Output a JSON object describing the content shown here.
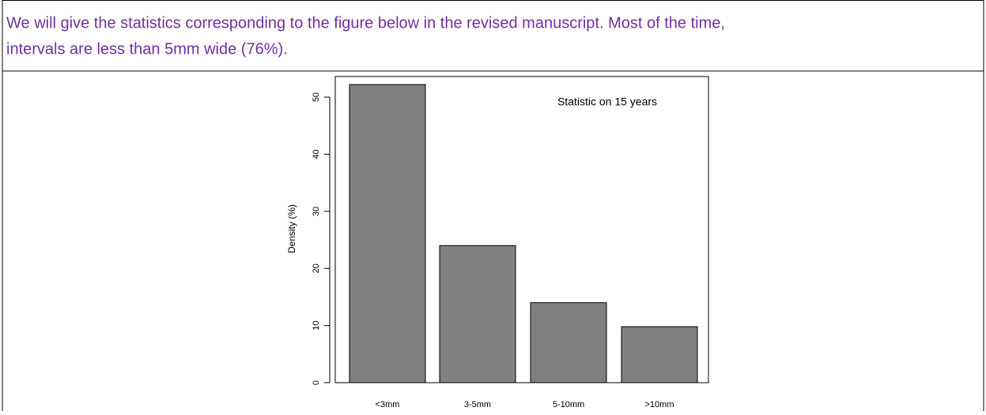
{
  "paragraph": [
    "We will give the statistics corresponding to the figure below in the revised manuscript. Most of the time,",
    "intervals are less than 5mm wide (76%)."
  ],
  "chart_data": {
    "type": "bar",
    "annotation": "Statistic on 15 years",
    "y_label": "Density (%)",
    "categories": [
      "<3mm",
      "3-5mm",
      "5-10mm",
      ">10mm"
    ],
    "values": [
      52.2,
      24,
      14,
      9.8
    ],
    "color": "#808080",
    "ylim": [
      0,
      53.6
    ],
    "yticks": [
      0,
      10,
      20,
      30,
      40,
      50
    ]
  }
}
